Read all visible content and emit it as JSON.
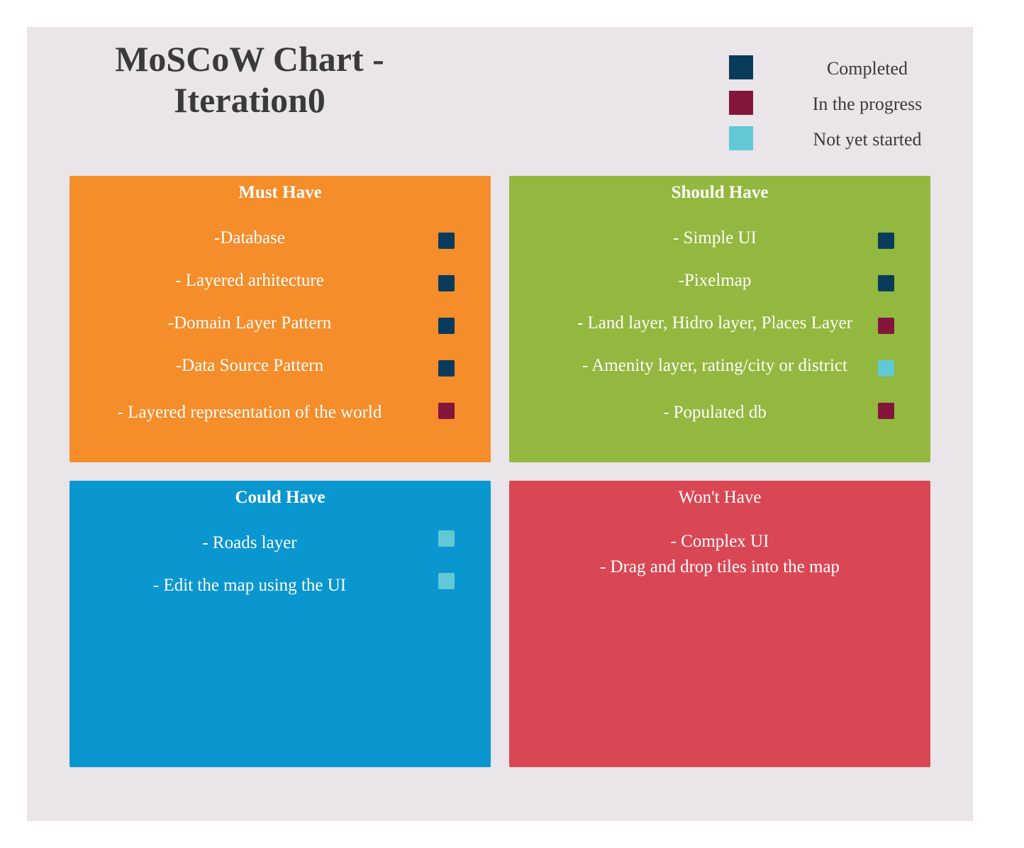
{
  "title_line1": "MoSCoW Chart -",
  "title_line2": "Iteration0",
  "colors": {
    "completed": "#0b3b5b",
    "in_progress": "#84163c",
    "not_started": "#62c8d6",
    "must": "#f48d2a",
    "should": "#92b83f",
    "could": "#0a96cf",
    "wont": "#da4754"
  },
  "legend": [
    {
      "label": "Completed",
      "status": "completed"
    },
    {
      "label": "In the progress",
      "status": "in_progress"
    },
    {
      "label": "Not yet started",
      "status": "not_started"
    }
  ],
  "must": {
    "title": "Must Have",
    "items": [
      {
        "text": "-Database",
        "status": "completed"
      },
      {
        "text": "- Layered arhitecture",
        "status": "completed"
      },
      {
        "text": "-Domain Layer Pattern",
        "status": "completed"
      },
      {
        "text": "-Data Source Pattern",
        "status": "completed"
      },
      {
        "text": "- Layered representation of the world",
        "status": "in_progress"
      }
    ]
  },
  "should": {
    "title": "Should Have",
    "items": [
      {
        "text": "- Simple UI",
        "status": "completed"
      },
      {
        "text": "-Pixelmap",
        "status": "completed"
      },
      {
        "text": "- Land layer, Hidro layer, Places Layer",
        "status": "in_progress"
      },
      {
        "text": "- Amenity layer, rating/city or district",
        "status": "not_started"
      },
      {
        "text": "- Populated db",
        "status": "in_progress"
      }
    ]
  },
  "could": {
    "title": "Could Have",
    "items": [
      {
        "text": "- Roads layer",
        "status": "not_started"
      },
      {
        "text": "- Edit the map using the UI",
        "status": "not_started"
      }
    ]
  },
  "wont": {
    "title": "Won't Have",
    "line1": "- Complex UI",
    "line2": "- Drag and drop tiles into the map"
  }
}
